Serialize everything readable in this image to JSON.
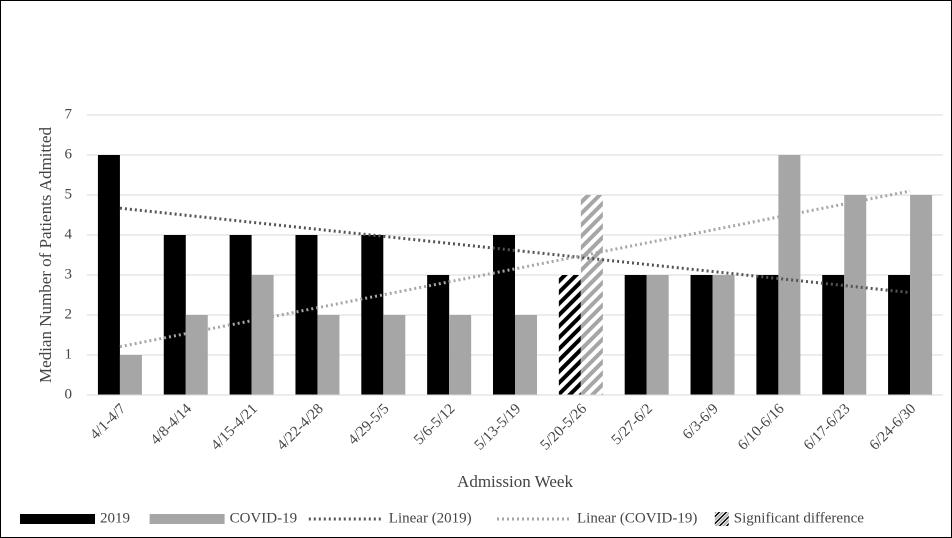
{
  "chart_data": {
    "type": "bar",
    "categories": [
      "4/1-4/7",
      "4/8-4/14",
      "4/15-4/21",
      "4/22-4/28",
      "4/29-5/5",
      "5/6-5/12",
      "5/13-5/19",
      "5/20-5/26",
      "5/27-6/2",
      "6/3-6/9",
      "6/10-6/16",
      "6/17-6/23",
      "6/24-6/30"
    ],
    "series": [
      {
        "name": "2019",
        "color": "#000000",
        "values": [
          6,
          4,
          4,
          4,
          4,
          3,
          4,
          3,
          3,
          3,
          3,
          3,
          3
        ],
        "trendline": {
          "name": "Linear (2019)",
          "color": "#555555"
        }
      },
      {
        "name": "COVID-19",
        "color": "#a6a6a6",
        "values": [
          1,
          2,
          3,
          2,
          2,
          2,
          2,
          5,
          3,
          3,
          6,
          5,
          5
        ],
        "trendline": {
          "name": "Linear (COVID-19)",
          "color": "#a6a6a6"
        }
      }
    ],
    "significant": {
      "label": "Significant difference",
      "categories": [
        "5/20-5/26"
      ]
    },
    "x_label": "Admission Week",
    "y_label": "Median Number of Patients Admitted",
    "ylim": [
      0,
      7
    ],
    "yticks": [
      0,
      1,
      2,
      3,
      4,
      5,
      6,
      7
    ],
    "grid": true,
    "legend": "bottom"
  }
}
